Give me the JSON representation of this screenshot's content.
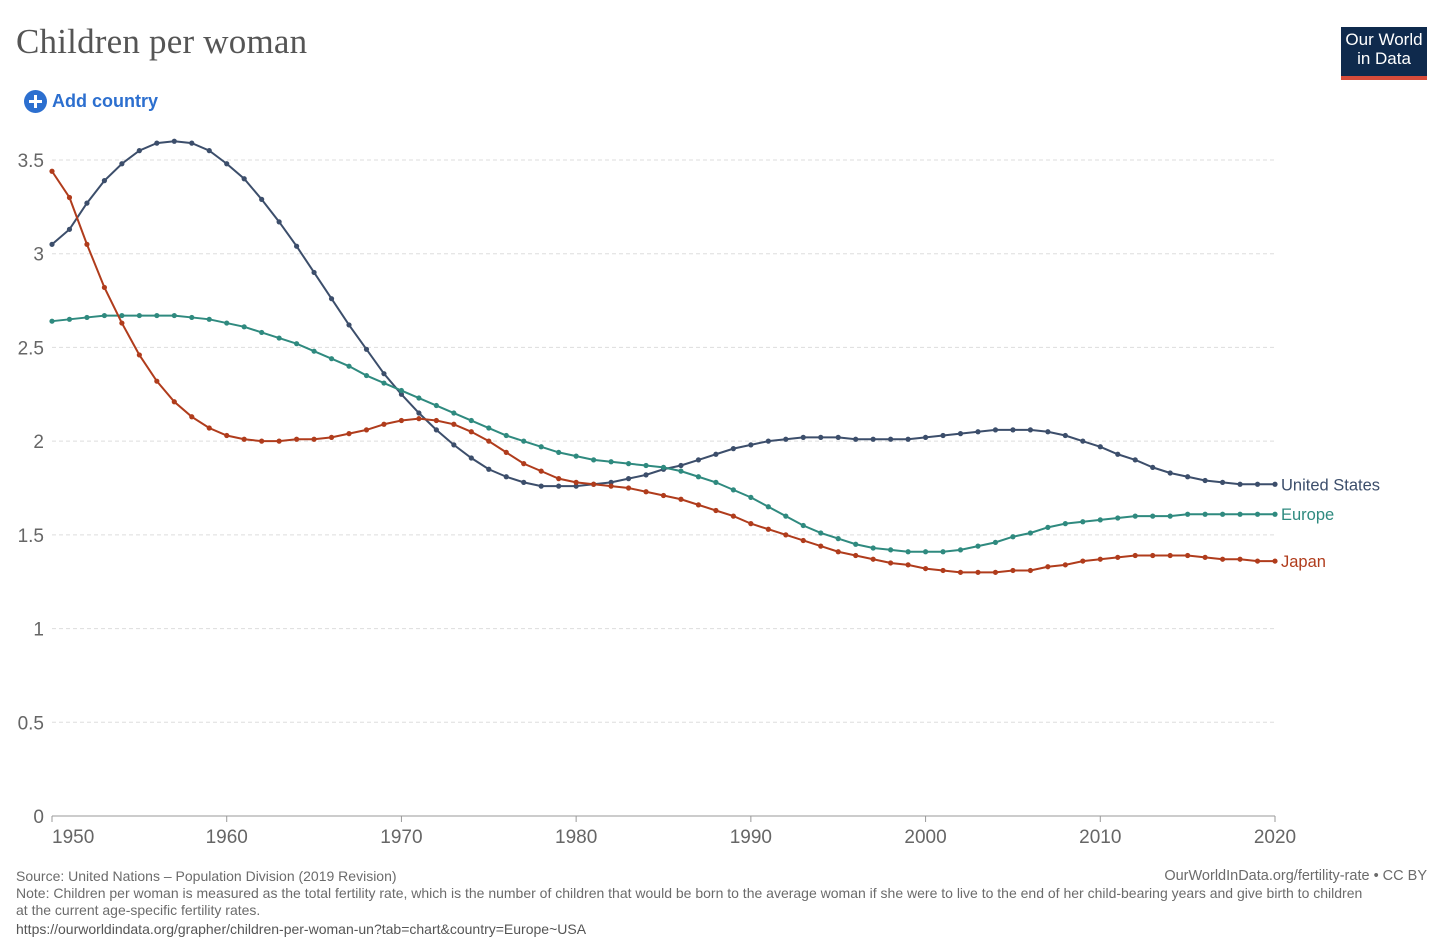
{
  "header": {
    "title": "Children per woman",
    "add_country_label": "Add country",
    "logo_line1": "Our World",
    "logo_line2": "in Data"
  },
  "footer": {
    "source": "Source: United Nations – Population Division (2019 Revision)",
    "credit": "OurWorldInData.org/fertility-rate • CC BY",
    "note": "Note: Children per woman is measured as the total fertility rate, which is the number of children that would be born to the average woman if she were to live to the end of her child-bearing years and give birth to children at the current age-specific fertility rates.",
    "url": "https://ourworldindata.org/grapher/children-per-woman-un?tab=chart&country=Europe~USA"
  },
  "chart_data": {
    "type": "line",
    "title": "Children per woman",
    "xlabel": "",
    "ylabel": "",
    "xlim": [
      1950,
      2020
    ],
    "ylim": [
      0,
      3.5
    ],
    "x_ticks": [
      1950,
      1960,
      1970,
      1980,
      1990,
      2000,
      2010,
      2020
    ],
    "y_ticks": [
      0,
      0.5,
      1,
      1.5,
      2,
      2.5,
      3,
      3.5
    ],
    "grid": "horizontal dashed",
    "legend": "inline at right end of each line",
    "series": [
      {
        "name": "United States",
        "color": "#3c4e6b",
        "points": [
          [
            1950,
            3.05
          ],
          [
            1951,
            3.13
          ],
          [
            1952,
            3.27
          ],
          [
            1953,
            3.39
          ],
          [
            1954,
            3.48
          ],
          [
            1955,
            3.55
          ],
          [
            1956,
            3.59
          ],
          [
            1957,
            3.6
          ],
          [
            1958,
            3.59
          ],
          [
            1959,
            3.55
          ],
          [
            1960,
            3.48
          ],
          [
            1961,
            3.4
          ],
          [
            1962,
            3.29
          ],
          [
            1963,
            3.17
          ],
          [
            1964,
            3.04
          ],
          [
            1965,
            2.9
          ],
          [
            1966,
            2.76
          ],
          [
            1967,
            2.62
          ],
          [
            1968,
            2.49
          ],
          [
            1969,
            2.36
          ],
          [
            1970,
            2.25
          ],
          [
            1971,
            2.15
          ],
          [
            1972,
            2.06
          ],
          [
            1973,
            1.98
          ],
          [
            1974,
            1.91
          ],
          [
            1975,
            1.85
          ],
          [
            1976,
            1.81
          ],
          [
            1977,
            1.78
          ],
          [
            1978,
            1.76
          ],
          [
            1979,
            1.76
          ],
          [
            1980,
            1.76
          ],
          [
            1981,
            1.77
          ],
          [
            1982,
            1.78
          ],
          [
            1983,
            1.8
          ],
          [
            1984,
            1.82
          ],
          [
            1985,
            1.85
          ],
          [
            1986,
            1.87
          ],
          [
            1987,
            1.9
          ],
          [
            1988,
            1.93
          ],
          [
            1989,
            1.96
          ],
          [
            1990,
            1.98
          ],
          [
            1991,
            2.0
          ],
          [
            1992,
            2.01
          ],
          [
            1993,
            2.02
          ],
          [
            1994,
            2.02
          ],
          [
            1995,
            2.02
          ],
          [
            1996,
            2.01
          ],
          [
            1997,
            2.01
          ],
          [
            1998,
            2.01
          ],
          [
            1999,
            2.01
          ],
          [
            2000,
            2.02
          ],
          [
            2001,
            2.03
          ],
          [
            2002,
            2.04
          ],
          [
            2003,
            2.05
          ],
          [
            2004,
            2.06
          ],
          [
            2005,
            2.06
          ],
          [
            2006,
            2.06
          ],
          [
            2007,
            2.05
          ],
          [
            2008,
            2.03
          ],
          [
            2009,
            2.0
          ],
          [
            2010,
            1.97
          ],
          [
            2011,
            1.93
          ],
          [
            2012,
            1.9
          ],
          [
            2013,
            1.86
          ],
          [
            2014,
            1.83
          ],
          [
            2015,
            1.81
          ],
          [
            2016,
            1.79
          ],
          [
            2017,
            1.78
          ],
          [
            2018,
            1.77
          ],
          [
            2019,
            1.77
          ],
          [
            2020,
            1.77
          ]
        ]
      },
      {
        "name": "Europe",
        "color": "#2f8a7f",
        "points": [
          [
            1950,
            2.64
          ],
          [
            1951,
            2.65
          ],
          [
            1952,
            2.66
          ],
          [
            1953,
            2.67
          ],
          [
            1954,
            2.67
          ],
          [
            1955,
            2.67
          ],
          [
            1956,
            2.67
          ],
          [
            1957,
            2.67
          ],
          [
            1958,
            2.66
          ],
          [
            1959,
            2.65
          ],
          [
            1960,
            2.63
          ],
          [
            1961,
            2.61
          ],
          [
            1962,
            2.58
          ],
          [
            1963,
            2.55
          ],
          [
            1964,
            2.52
          ],
          [
            1965,
            2.48
          ],
          [
            1966,
            2.44
          ],
          [
            1967,
            2.4
          ],
          [
            1968,
            2.35
          ],
          [
            1969,
            2.31
          ],
          [
            1970,
            2.27
          ],
          [
            1971,
            2.23
          ],
          [
            1972,
            2.19
          ],
          [
            1973,
            2.15
          ],
          [
            1974,
            2.11
          ],
          [
            1975,
            2.07
          ],
          [
            1976,
            2.03
          ],
          [
            1977,
            2.0
          ],
          [
            1978,
            1.97
          ],
          [
            1979,
            1.94
          ],
          [
            1980,
            1.92
          ],
          [
            1981,
            1.9
          ],
          [
            1982,
            1.89
          ],
          [
            1983,
            1.88
          ],
          [
            1984,
            1.87
          ],
          [
            1985,
            1.86
          ],
          [
            1986,
            1.84
          ],
          [
            1987,
            1.81
          ],
          [
            1988,
            1.78
          ],
          [
            1989,
            1.74
          ],
          [
            1990,
            1.7
          ],
          [
            1991,
            1.65
          ],
          [
            1992,
            1.6
          ],
          [
            1993,
            1.55
          ],
          [
            1994,
            1.51
          ],
          [
            1995,
            1.48
          ],
          [
            1996,
            1.45
          ],
          [
            1997,
            1.43
          ],
          [
            1998,
            1.42
          ],
          [
            1999,
            1.41
          ],
          [
            2000,
            1.41
          ],
          [
            2001,
            1.41
          ],
          [
            2002,
            1.42
          ],
          [
            2003,
            1.44
          ],
          [
            2004,
            1.46
          ],
          [
            2005,
            1.49
          ],
          [
            2006,
            1.51
          ],
          [
            2007,
            1.54
          ],
          [
            2008,
            1.56
          ],
          [
            2009,
            1.57
          ],
          [
            2010,
            1.58
          ],
          [
            2011,
            1.59
          ],
          [
            2012,
            1.6
          ],
          [
            2013,
            1.6
          ],
          [
            2014,
            1.6
          ],
          [
            2015,
            1.61
          ],
          [
            2016,
            1.61
          ],
          [
            2017,
            1.61
          ],
          [
            2018,
            1.61
          ],
          [
            2019,
            1.61
          ],
          [
            2020,
            1.61
          ]
        ]
      },
      {
        "name": "Japan",
        "color": "#b03c1c",
        "points": [
          [
            1950,
            3.44
          ],
          [
            1951,
            3.3
          ],
          [
            1952,
            3.05
          ],
          [
            1953,
            2.82
          ],
          [
            1954,
            2.63
          ],
          [
            1955,
            2.46
          ],
          [
            1956,
            2.32
          ],
          [
            1957,
            2.21
          ],
          [
            1958,
            2.13
          ],
          [
            1959,
            2.07
          ],
          [
            1960,
            2.03
          ],
          [
            1961,
            2.01
          ],
          [
            1962,
            2.0
          ],
          [
            1963,
            2.0
          ],
          [
            1964,
            2.01
          ],
          [
            1965,
            2.01
          ],
          [
            1966,
            2.02
          ],
          [
            1967,
            2.04
          ],
          [
            1968,
            2.06
          ],
          [
            1969,
            2.09
          ],
          [
            1970,
            2.11
          ],
          [
            1971,
            2.12
          ],
          [
            1972,
            2.11
          ],
          [
            1973,
            2.09
          ],
          [
            1974,
            2.05
          ],
          [
            1975,
            2.0
          ],
          [
            1976,
            1.94
          ],
          [
            1977,
            1.88
          ],
          [
            1978,
            1.84
          ],
          [
            1979,
            1.8
          ],
          [
            1980,
            1.78
          ],
          [
            1981,
            1.77
          ],
          [
            1982,
            1.76
          ],
          [
            1983,
            1.75
          ],
          [
            1984,
            1.73
          ],
          [
            1985,
            1.71
          ],
          [
            1986,
            1.69
          ],
          [
            1987,
            1.66
          ],
          [
            1988,
            1.63
          ],
          [
            1989,
            1.6
          ],
          [
            1990,
            1.56
          ],
          [
            1991,
            1.53
          ],
          [
            1992,
            1.5
          ],
          [
            1993,
            1.47
          ],
          [
            1994,
            1.44
          ],
          [
            1995,
            1.41
          ],
          [
            1996,
            1.39
          ],
          [
            1997,
            1.37
          ],
          [
            1998,
            1.35
          ],
          [
            1999,
            1.34
          ],
          [
            2000,
            1.32
          ],
          [
            2001,
            1.31
          ],
          [
            2002,
            1.3
          ],
          [
            2003,
            1.3
          ],
          [
            2004,
            1.3
          ],
          [
            2005,
            1.31
          ],
          [
            2006,
            1.31
          ],
          [
            2007,
            1.33
          ],
          [
            2008,
            1.34
          ],
          [
            2009,
            1.36
          ],
          [
            2010,
            1.37
          ],
          [
            2011,
            1.38
          ],
          [
            2012,
            1.39
          ],
          [
            2013,
            1.39
          ],
          [
            2014,
            1.39
          ],
          [
            2015,
            1.39
          ],
          [
            2016,
            1.38
          ],
          [
            2017,
            1.37
          ],
          [
            2018,
            1.37
          ],
          [
            2019,
            1.36
          ],
          [
            2020,
            1.36
          ]
        ]
      }
    ]
  }
}
